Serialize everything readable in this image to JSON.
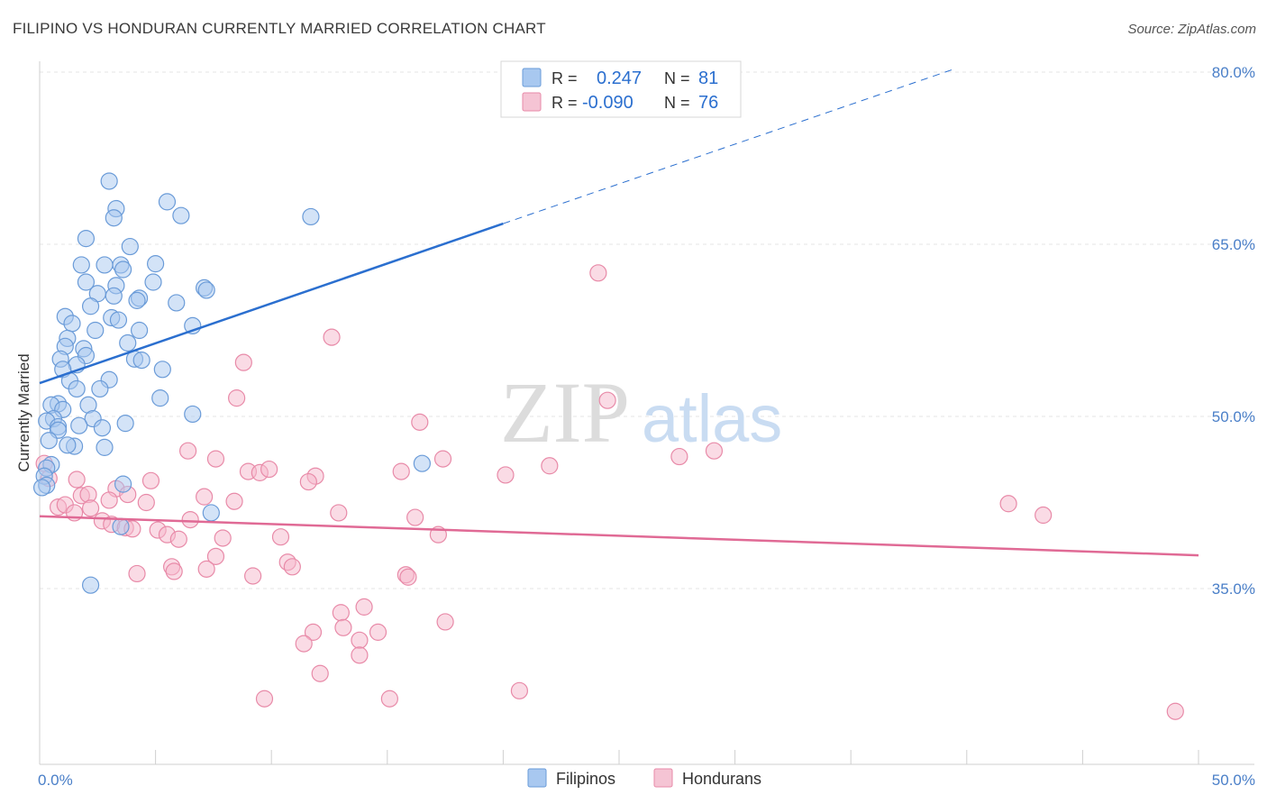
{
  "title": "FILIPINO VS HONDURAN CURRENTLY MARRIED CORRELATION CHART",
  "source": "Source: ZipAtlas.com",
  "watermark": {
    "zip": "ZIP",
    "atlas": "atlas"
  },
  "chart_data": {
    "type": "scatter",
    "title": "FILIPINO VS HONDURAN CURRENTLY MARRIED CORRELATION CHART",
    "ylabel": "Currently Married",
    "xlabel": "",
    "xlim": [
      0,
      50
    ],
    "ylim": [
      22,
      80
    ],
    "x_tick_labels": [
      {
        "value": 0,
        "label": "0.0%"
      },
      {
        "value": 50,
        "label": "50.0%"
      }
    ],
    "y_tick_labels": [
      {
        "value": 80,
        "label": "80.0%"
      },
      {
        "value": 65,
        "label": "65.0%"
      },
      {
        "value": 50,
        "label": "50.0%"
      },
      {
        "value": 35,
        "label": "35.0%"
      }
    ],
    "legend": [
      {
        "series": "Filipinos",
        "r_label": "R =",
        "r_value": "0.247",
        "n_label": "N =",
        "n_value": "81"
      },
      {
        "series": "Hondurans",
        "r_label": "R =",
        "r_value": "-0.090",
        "n_label": "N =",
        "n_value": "76"
      }
    ],
    "colors": {
      "Filipinos": {
        "fill": "#a8c8f0",
        "stroke": "#6a9bd8",
        "line": "#2b6fcf"
      },
      "Hondurans": {
        "fill": "#f5b7cb",
        "stroke": "#e88aa8",
        "line": "#e06a95"
      }
    },
    "series": [
      {
        "name": "Filipinos",
        "trend": {
          "x0": 0,
          "y0": 52.9,
          "x1": 20,
          "y1": 66.8,
          "dash_to_x": 39.5,
          "dash_to_y": 80.3
        },
        "points": [
          [
            3.0,
            70.5
          ],
          [
            3.3,
            68.1
          ],
          [
            5.5,
            68.7
          ],
          [
            3.2,
            67.3
          ],
          [
            6.1,
            67.5
          ],
          [
            11.7,
            67.4
          ],
          [
            2.0,
            65.5
          ],
          [
            3.9,
            64.8
          ],
          [
            1.8,
            63.2
          ],
          [
            2.8,
            63.2
          ],
          [
            3.5,
            63.2
          ],
          [
            5.0,
            63.3
          ],
          [
            3.6,
            62.8
          ],
          [
            2.0,
            61.7
          ],
          [
            3.3,
            61.4
          ],
          [
            4.9,
            61.7
          ],
          [
            7.1,
            61.2
          ],
          [
            7.2,
            61.0
          ],
          [
            2.5,
            60.7
          ],
          [
            3.2,
            60.5
          ],
          [
            4.3,
            60.3
          ],
          [
            4.2,
            60.1
          ],
          [
            5.9,
            59.9
          ],
          [
            2.2,
            59.6
          ],
          [
            1.1,
            58.7
          ],
          [
            3.1,
            58.6
          ],
          [
            3.4,
            58.4
          ],
          [
            1.4,
            58.1
          ],
          [
            6.6,
            57.9
          ],
          [
            2.4,
            57.5
          ],
          [
            4.3,
            57.5
          ],
          [
            1.2,
            56.8
          ],
          [
            3.8,
            56.4
          ],
          [
            1.1,
            56.1
          ],
          [
            1.9,
            55.9
          ],
          [
            0.9,
            55.0
          ],
          [
            2.0,
            55.3
          ],
          [
            4.1,
            55.0
          ],
          [
            4.4,
            54.9
          ],
          [
            1.6,
            54.5
          ],
          [
            1.0,
            54.1
          ],
          [
            5.3,
            54.1
          ],
          [
            3.0,
            53.2
          ],
          [
            1.3,
            53.1
          ],
          [
            1.6,
            52.4
          ],
          [
            2.6,
            52.4
          ],
          [
            5.2,
            51.6
          ],
          [
            0.8,
            51.1
          ],
          [
            0.5,
            51.0
          ],
          [
            2.1,
            51.0
          ],
          [
            1.0,
            50.6
          ],
          [
            6.6,
            50.2
          ],
          [
            3.7,
            49.4
          ],
          [
            0.6,
            49.8
          ],
          [
            0.3,
            49.6
          ],
          [
            2.3,
            49.8
          ],
          [
            0.8,
            49.1
          ],
          [
            0.8,
            48.8
          ],
          [
            1.7,
            49.2
          ],
          [
            2.7,
            49.0
          ],
          [
            0.4,
            47.9
          ],
          [
            1.5,
            47.4
          ],
          [
            1.2,
            47.5
          ],
          [
            2.8,
            47.3
          ],
          [
            0.5,
            45.8
          ],
          [
            0.3,
            45.5
          ],
          [
            0.2,
            44.8
          ],
          [
            3.6,
            44.1
          ],
          [
            0.3,
            44.0
          ],
          [
            0.1,
            43.8
          ],
          [
            16.5,
            45.9
          ],
          [
            7.4,
            41.6
          ],
          [
            3.5,
            40.4
          ],
          [
            2.2,
            35.3
          ]
        ]
      },
      {
        "name": "Hondurans",
        "trend": {
          "x0": 0,
          "y0": 41.3,
          "x1": 50,
          "y1": 37.9
        },
        "points": [
          [
            24.1,
            62.5
          ],
          [
            12.6,
            56.9
          ],
          [
            8.8,
            54.7
          ],
          [
            8.5,
            51.6
          ],
          [
            24.5,
            51.4
          ],
          [
            16.4,
            49.5
          ],
          [
            6.4,
            47.0
          ],
          [
            29.1,
            47.0
          ],
          [
            27.6,
            46.5
          ],
          [
            7.6,
            46.3
          ],
          [
            17.4,
            46.3
          ],
          [
            22.0,
            45.7
          ],
          [
            0.2,
            45.9
          ],
          [
            9.0,
            45.2
          ],
          [
            9.5,
            45.1
          ],
          [
            15.6,
            45.2
          ],
          [
            9.9,
            45.4
          ],
          [
            11.9,
            44.8
          ],
          [
            20.1,
            44.9
          ],
          [
            4.8,
            44.4
          ],
          [
            1.6,
            44.5
          ],
          [
            11.6,
            44.3
          ],
          [
            0.4,
            44.6
          ],
          [
            3.3,
            43.7
          ],
          [
            1.8,
            43.1
          ],
          [
            3.8,
            43.2
          ],
          [
            2.1,
            43.2
          ],
          [
            7.1,
            43.0
          ],
          [
            3.0,
            42.7
          ],
          [
            4.6,
            42.5
          ],
          [
            8.4,
            42.6
          ],
          [
            0.8,
            42.1
          ],
          [
            1.1,
            42.3
          ],
          [
            2.2,
            42.0
          ],
          [
            1.5,
            41.6
          ],
          [
            12.9,
            41.6
          ],
          [
            16.2,
            41.2
          ],
          [
            6.5,
            41.0
          ],
          [
            2.7,
            40.9
          ],
          [
            41.8,
            42.4
          ],
          [
            43.3,
            41.4
          ],
          [
            3.1,
            40.6
          ],
          [
            3.7,
            40.3
          ],
          [
            4.0,
            40.2
          ],
          [
            5.1,
            40.1
          ],
          [
            5.5,
            39.7
          ],
          [
            6.0,
            39.3
          ],
          [
            7.9,
            39.4
          ],
          [
            10.4,
            39.5
          ],
          [
            17.2,
            39.7
          ],
          [
            7.6,
            37.8
          ],
          [
            10.7,
            37.3
          ],
          [
            10.9,
            36.9
          ],
          [
            5.7,
            36.9
          ],
          [
            7.2,
            36.7
          ],
          [
            5.8,
            36.5
          ],
          [
            4.2,
            36.3
          ],
          [
            9.2,
            36.1
          ],
          [
            15.8,
            36.2
          ],
          [
            15.9,
            36.0
          ],
          [
            14.0,
            33.4
          ],
          [
            13.0,
            32.9
          ],
          [
            17.5,
            32.1
          ],
          [
            13.1,
            31.6
          ],
          [
            11.8,
            31.2
          ],
          [
            14.6,
            31.2
          ],
          [
            13.8,
            30.5
          ],
          [
            11.4,
            30.2
          ],
          [
            13.8,
            29.2
          ],
          [
            12.1,
            27.6
          ],
          [
            20.7,
            26.1
          ],
          [
            9.7,
            25.4
          ],
          [
            15.1,
            25.4
          ],
          [
            49.0,
            24.3
          ]
        ]
      }
    ]
  }
}
